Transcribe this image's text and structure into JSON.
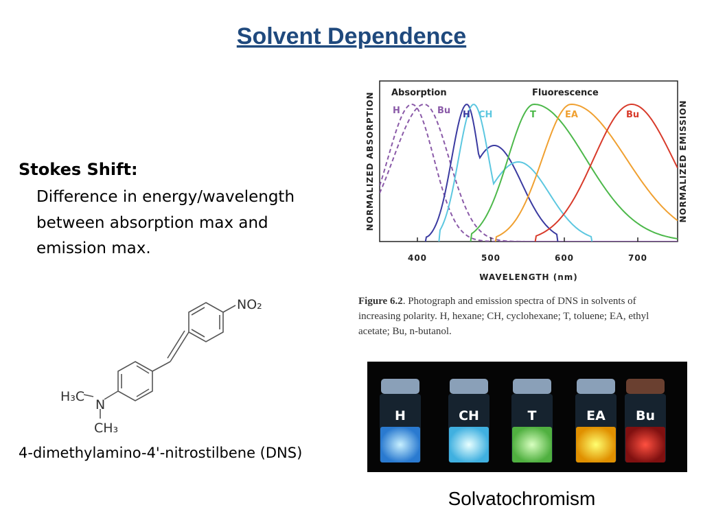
{
  "title": "Solvent Dependence",
  "stokes": {
    "heading": "Stokes Shift:",
    "lines": [
      "Difference in energy/wavelength",
      "between absorption max and",
      "emission max."
    ]
  },
  "molecule": {
    "labels": [
      "NO₂",
      "H₃C",
      "N",
      "CH₃"
    ],
    "caption": "4-dimethylamino-4'-nitrostilbene (DNS)"
  },
  "spectra": {
    "y_left_label": "NORMALIZED ABSORPTION",
    "y_right_label": "NORMALIZED EMISSION",
    "x_label": "WAVELENGTH (nm)",
    "xticks": [
      400,
      500,
      600,
      700
    ],
    "group_labels": [
      "Absorption",
      "Fluorescence"
    ],
    "curve_labels": [
      "H",
      "Bu",
      "H",
      "CH",
      "T",
      "EA",
      "Bu"
    ]
  },
  "figure_caption": {
    "label": "Figure 6.2",
    "lines": [
      ". Photograph and emission spectra of DNS in solvents of",
      "increasing polarity. H, hexane; CH, cyclohexane; T, toluene; EA, ethyl",
      "acetate; Bu, n-butanol."
    ]
  },
  "photo": {
    "vials": [
      "H",
      "CH",
      "T",
      "EA",
      "Bu"
    ]
  },
  "photo_caption": "Solvatochromism"
}
